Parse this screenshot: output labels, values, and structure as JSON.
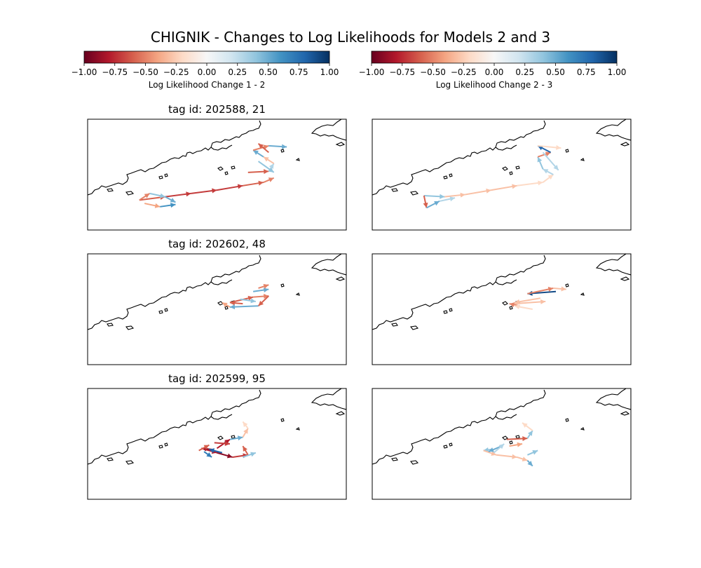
{
  "title": "CHIGNIK - Changes to Log Likelihoods for Models 2 and 3",
  "colorbars": [
    {
      "label": "Log Likelihood Change 1 - 2",
      "ticks": [
        "−1.00",
        "−0.75",
        "−0.50",
        "−0.25",
        "0.00",
        "0.25",
        "0.50",
        "0.75",
        "1.00"
      ],
      "range": [
        -1,
        1
      ]
    },
    {
      "label": "Log Likelihood Change 2 - 3",
      "ticks": [
        "−1.00",
        "−0.75",
        "−0.50",
        "−0.25",
        "0.00",
        "0.25",
        "0.50",
        "0.75",
        "1.00"
      ],
      "range": [
        -1,
        1
      ]
    }
  ],
  "colormap": [
    "#67001f",
    "#b2182b",
    "#d6604d",
    "#f4a582",
    "#fddbc7",
    "#f7f7f7",
    "#d1e5f0",
    "#92c5de",
    "#4393c3",
    "#2166ac",
    "#053061"
  ],
  "chart_data": {
    "type": "vector-map",
    "description_units": "arrow endpoints in normalized map coords (0-1 of map extent), value = log-likelihood change",
    "rows": [
      {
        "tag_title": "tag id: 202588, 21",
        "panels": [
          {
            "change": "1 - 2",
            "arrows": [
              [
                0.2,
                0.73,
                0.3,
                0.7,
                -0.6
              ],
              [
                0.3,
                0.7,
                0.4,
                0.67,
                -0.7
              ],
              [
                0.4,
                0.67,
                0.5,
                0.64,
                -0.7
              ],
              [
                0.5,
                0.64,
                0.6,
                0.6,
                -0.7
              ],
              [
                0.6,
                0.6,
                0.68,
                0.57,
                -0.6
              ],
              [
                0.68,
                0.57,
                0.72,
                0.53,
                -0.5
              ],
              [
                0.2,
                0.73,
                0.24,
                0.67,
                -0.5
              ],
              [
                0.24,
                0.67,
                0.3,
                0.7,
                0.4
              ],
              [
                0.3,
                0.7,
                0.34,
                0.75,
                0.5
              ],
              [
                0.22,
                0.76,
                0.28,
                0.79,
                -0.4
              ],
              [
                0.28,
                0.79,
                0.34,
                0.77,
                0.6
              ],
              [
                0.62,
                0.48,
                0.7,
                0.47,
                -0.6
              ],
              [
                0.7,
                0.47,
                0.72,
                0.4,
                0.3
              ],
              [
                0.72,
                0.4,
                0.68,
                0.34,
                -0.3
              ],
              [
                0.68,
                0.34,
                0.64,
                0.28,
                0.5
              ],
              [
                0.64,
                0.28,
                0.7,
                0.24,
                -0.5
              ],
              [
                0.7,
                0.24,
                0.77,
                0.25,
                0.5
              ],
              [
                0.66,
                0.38,
                0.72,
                0.48,
                0.4
              ],
              [
                0.7,
                0.3,
                0.66,
                0.22,
                -0.6
              ]
            ]
          },
          {
            "change": "2 - 3",
            "arrows": [
              [
                0.2,
                0.69,
                0.28,
                0.7,
                0.4
              ],
              [
                0.28,
                0.7,
                0.36,
                0.68,
                -0.3
              ],
              [
                0.36,
                0.68,
                0.46,
                0.64,
                -0.3
              ],
              [
                0.46,
                0.64,
                0.56,
                0.6,
                -0.3
              ],
              [
                0.56,
                0.6,
                0.66,
                0.57,
                -0.2
              ],
              [
                0.66,
                0.57,
                0.7,
                0.5,
                -0.2
              ],
              [
                0.2,
                0.69,
                0.21,
                0.8,
                -0.6
              ],
              [
                0.21,
                0.8,
                0.26,
                0.74,
                0.5
              ],
              [
                0.26,
                0.74,
                0.32,
                0.71,
                0.3
              ],
              [
                0.7,
                0.5,
                0.66,
                0.45,
                0.3
              ],
              [
                0.66,
                0.45,
                0.64,
                0.34,
                0.4
              ],
              [
                0.64,
                0.34,
                0.69,
                0.3,
                -0.5
              ],
              [
                0.69,
                0.3,
                0.64,
                0.24,
                0.8
              ],
              [
                0.64,
                0.24,
                0.73,
                0.26,
                -0.2
              ],
              [
                0.66,
                0.3,
                0.72,
                0.46,
                0.3
              ]
            ]
          }
        ]
      },
      {
        "tag_title": "tag id: 202602, 48",
        "panels": [
          {
            "change": "1 - 2",
            "arrows": [
              [
                0.6,
                0.45,
                0.55,
                0.44,
                -0.6
              ],
              [
                0.55,
                0.44,
                0.64,
                0.39,
                -0.6
              ],
              [
                0.64,
                0.39,
                0.7,
                0.38,
                -0.5
              ],
              [
                0.7,
                0.38,
                0.66,
                0.47,
                -0.6
              ],
              [
                0.66,
                0.47,
                0.55,
                0.48,
                0.5
              ],
              [
                0.55,
                0.48,
                0.52,
                0.44,
                -0.4
              ],
              [
                0.64,
                0.34,
                0.7,
                0.32,
                0.5
              ],
              [
                0.66,
                0.31,
                0.7,
                0.28,
                -0.5
              ],
              [
                0.59,
                0.41,
                0.65,
                0.43,
                0.4
              ]
            ]
          },
          {
            "change": "2 - 3",
            "arrows": [
              [
                0.71,
                0.34,
                0.6,
                0.36,
                0.9
              ],
              [
                0.6,
                0.36,
                0.7,
                0.31,
                -0.5
              ],
              [
                0.7,
                0.31,
                0.75,
                0.32,
                -0.3
              ],
              [
                0.55,
                0.45,
                0.67,
                0.43,
                -0.3
              ],
              [
                0.65,
                0.4,
                0.55,
                0.44,
                -0.3
              ],
              [
                0.57,
                0.47,
                0.53,
                0.45,
                -0.5
              ],
              [
                0.62,
                0.5,
                0.55,
                0.47,
                -0.2
              ]
            ]
          }
        ]
      },
      {
        "tag_title": "tag id: 202599, 95",
        "panels": [
          {
            "change": "1 - 2",
            "arrows": [
              [
                0.48,
                0.55,
                0.44,
                0.54,
                -0.9
              ],
              [
                0.44,
                0.54,
                0.5,
                0.58,
                -0.8
              ],
              [
                0.5,
                0.58,
                0.56,
                0.62,
                -0.9
              ],
              [
                0.56,
                0.62,
                0.62,
                0.6,
                -0.7
              ],
              [
                0.62,
                0.6,
                0.6,
                0.52,
                -0.6
              ],
              [
                0.5,
                0.54,
                0.55,
                0.46,
                -0.8
              ],
              [
                0.55,
                0.46,
                0.6,
                0.44,
                0.5
              ],
              [
                0.6,
                0.44,
                0.62,
                0.36,
                -0.3
              ],
              [
                0.62,
                0.36,
                0.6,
                0.3,
                -0.2
              ],
              [
                0.45,
                0.57,
                0.48,
                0.62,
                0.7
              ],
              [
                0.52,
                0.58,
                0.47,
                0.55,
                0.8
              ],
              [
                0.6,
                0.62,
                0.65,
                0.58,
                0.4
              ],
              [
                0.49,
                0.49,
                0.55,
                0.5,
                -0.7
              ],
              [
                0.43,
                0.56,
                0.47,
                0.51,
                -0.6
              ]
            ]
          },
          {
            "change": "2 - 3",
            "arrows": [
              [
                0.52,
                0.46,
                0.6,
                0.45,
                -0.6
              ],
              [
                0.6,
                0.45,
                0.62,
                0.38,
                0.4
              ],
              [
                0.62,
                0.38,
                0.58,
                0.31,
                -0.2
              ],
              [
                0.46,
                0.55,
                0.43,
                0.56,
                0.4
              ],
              [
                0.43,
                0.56,
                0.48,
                0.6,
                -0.3
              ],
              [
                0.48,
                0.6,
                0.56,
                0.62,
                -0.3
              ],
              [
                0.56,
                0.62,
                0.6,
                0.65,
                -0.3
              ],
              [
                0.6,
                0.65,
                0.62,
                0.7,
                0.5
              ],
              [
                0.6,
                0.6,
                0.64,
                0.56,
                0.4
              ],
              [
                0.5,
                0.52,
                0.45,
                0.57,
                0.5
              ],
              [
                0.53,
                0.52,
                0.58,
                0.5,
                -0.4
              ],
              [
                0.47,
                0.58,
                0.51,
                0.5,
                0.3
              ]
            ]
          }
        ]
      }
    ]
  }
}
